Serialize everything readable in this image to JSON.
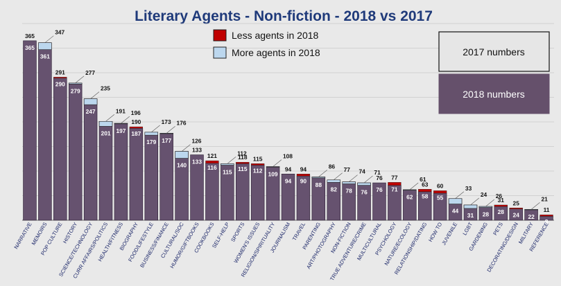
{
  "chart_data": {
    "type": "bar",
    "title": "Literary Agents - Non-fiction - 2018 vs 2017",
    "categories": [
      "NARRATIVE",
      "MEMOIRS",
      "POP CULTURE",
      "HISTORY",
      "SCIENCE/TECHNOLOGY",
      "CURR AFFAIRS/POLITICS",
      "HEALTH/FITNESS",
      "BIOGRAPHY",
      "FOOD/LIFESTYLE",
      "BUSINESS/FINANCE",
      "CULTURAL/SOC",
      "HUMOR/GIFTBOOKS",
      "COOKBOOKS",
      "SELF-HELP",
      "SPORTS",
      "WOMEN'S ISSUES",
      "RELIGION/SPIRITUALITY",
      "JOURNALISM",
      "TRAVEL",
      "PARENTING",
      "ART/PHOTOGRAPHY",
      "NON-FICTION",
      "TRUE ADVENTURE/CRIME",
      "MULTICULTURAL",
      "PSYCHOLOGY",
      "NATURE/ECOLOGY",
      "RELATIONSHIP/DATING",
      "HOW TO",
      "JUVENILE",
      "LGBT",
      "GARDENING",
      "PETS",
      "DECORATING/DESIGN",
      "MILITARY",
      "REFERENCE"
    ],
    "series": [
      {
        "name": "2017 numbers",
        "values": [
          365,
          347,
          291,
          277,
          235,
          191,
          196,
          190,
          173,
          176,
          126,
          133,
          121,
          112,
          118,
          115,
          108,
          94,
          94,
          86,
          77,
          74,
          71,
          76,
          77,
          61,
          63,
          60,
          33,
          24,
          26,
          31,
          25,
          21,
          11
        ]
      },
      {
        "name": "2018 numbers",
        "values": [
          365,
          361,
          290,
          279,
          247,
          201,
          197,
          187,
          179,
          177,
          140,
          133,
          116,
          115,
          115,
          112,
          109,
          94,
          90,
          88,
          82,
          78,
          76,
          76,
          71,
          62,
          58,
          55,
          44,
          31,
          28,
          28,
          24,
          22,
          8
        ]
      }
    ],
    "legend": {
      "less": {
        "label": "Less agents in 2018",
        "color": "#c00000"
      },
      "more": {
        "label": "More agents in 2018",
        "color": "#bcd7ee"
      },
      "box_2017": "2017 numbers",
      "box_2018": "2018 numbers"
    },
    "ylim": [
      0,
      400
    ],
    "grid": true,
    "colors": {
      "bar2018": "#66526f",
      "bar2018_border": "#2b1e33",
      "background": "#e9e9e9",
      "title": "#1f3a7a",
      "box2017_fill": "#e6e6e6",
      "box2018_fill": "#65506b",
      "gridline": "#b9b9b9",
      "axis": "#666666"
    }
  }
}
